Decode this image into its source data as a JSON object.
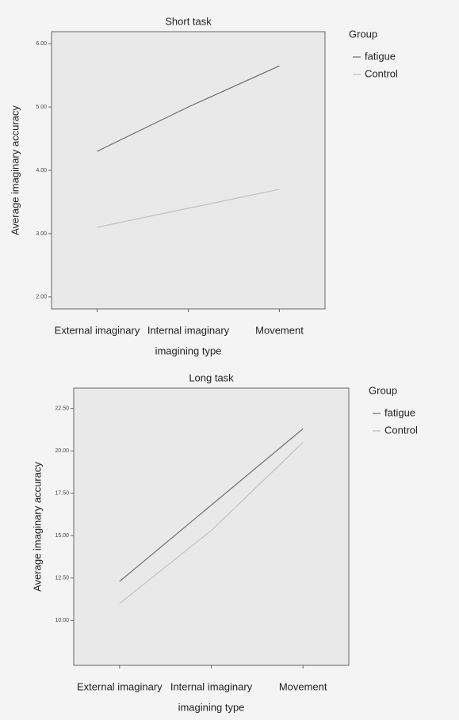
{
  "chart_data": [
    {
      "type": "line",
      "title": "Short task",
      "x_label": "imagining type",
      "y_label": "Average imaginary accuracy",
      "legend_title": "Group",
      "categories": [
        "External imaginary",
        "Internal imaginary",
        "Movement"
      ],
      "series": [
        {
          "name": "fatigue",
          "color": "#777777",
          "values": [
            4.3,
            5.0,
            5.65
          ]
        },
        {
          "name": "Control",
          "color": "#c4c4c4",
          "values": [
            3.1,
            3.4,
            3.7
          ]
        }
      ],
      "ylim": [
        1.81,
        6.19
      ],
      "yticks": [
        {
          "value": 2,
          "label": "2.00"
        },
        {
          "value": 3,
          "label": "3.00"
        },
        {
          "value": 4,
          "label": "4.00"
        },
        {
          "value": 5,
          "label": "5.00"
        },
        {
          "value": 6,
          "label": "6.00"
        }
      ]
    },
    {
      "type": "line",
      "title": "Long task",
      "x_label": "imagining type",
      "y_label": "Average imaginary accuracy",
      "legend_title": "Group",
      "categories": [
        "External imaginary",
        "Internal imaginary",
        "Movement"
      ],
      "series": [
        {
          "name": "fatigue",
          "color": "#777777",
          "values": [
            12.3,
            16.8,
            21.3
          ]
        },
        {
          "name": "Control",
          "color": "#c4c4c4",
          "values": [
            11.0,
            15.3,
            20.5
          ]
        }
      ],
      "ylim": [
        7.35,
        23.7
      ],
      "yticks": [
        {
          "value": 10,
          "label": "10.00"
        },
        {
          "value": 12.5,
          "label": "12.50"
        },
        {
          "value": 15,
          "label": "15.00"
        },
        {
          "value": 17.5,
          "label": "17.50"
        },
        {
          "value": 20,
          "label": "20.00"
        },
        {
          "value": 22.5,
          "label": "22.50"
        }
      ]
    }
  ]
}
